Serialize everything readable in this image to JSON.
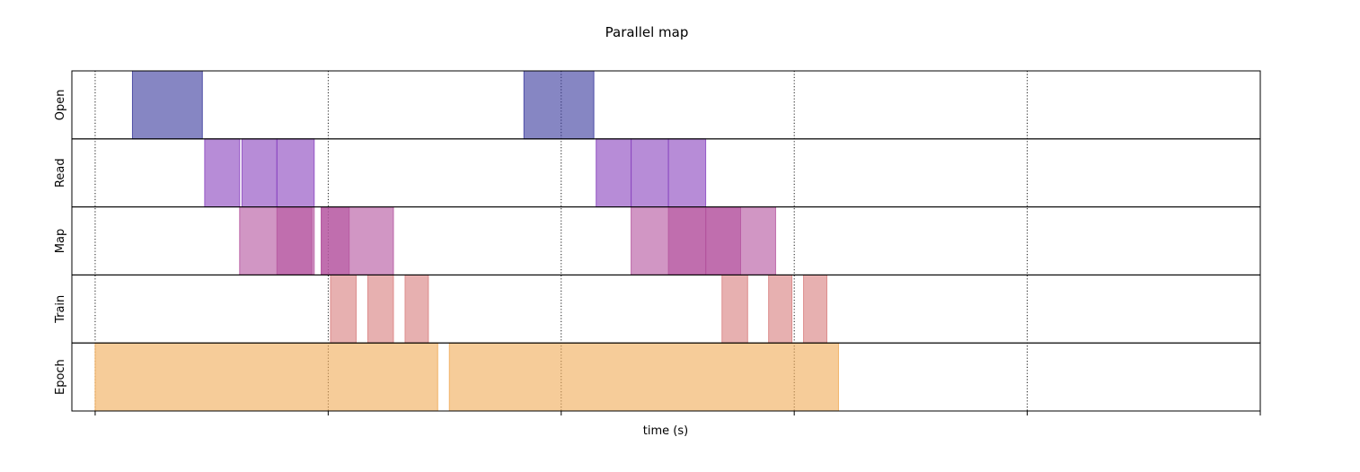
{
  "chart_data": {
    "type": "timeline",
    "title": "Parallel map",
    "xlabel": "time (s)",
    "xlim": [
      -0.1,
      5.0
    ],
    "grid_x": [
      0,
      1,
      2,
      3,
      4,
      5
    ],
    "lanes": [
      {
        "name": "Open",
        "color": "#3c3c9e",
        "segments": [
          {
            "start": 0.16,
            "end": 0.46
          },
          {
            "start": 1.84,
            "end": 2.14
          }
        ]
      },
      {
        "name": "Read",
        "color": "#8a46bf",
        "segments": [
          {
            "start": 0.47,
            "end": 0.62
          },
          {
            "start": 0.63,
            "end": 0.78
          },
          {
            "start": 0.78,
            "end": 0.94
          },
          {
            "start": 2.15,
            "end": 2.3
          },
          {
            "start": 2.3,
            "end": 2.46
          },
          {
            "start": 2.46,
            "end": 2.62
          }
        ]
      },
      {
        "name": "Map",
        "color": "#b5569f",
        "segments": [
          {
            "start": 0.62,
            "end": 0.94
          },
          {
            "start": 0.78,
            "end": 0.93
          },
          {
            "start": 0.97,
            "end": 1.28
          },
          {
            "start": 0.97,
            "end": 1.09
          },
          {
            "start": 2.3,
            "end": 2.62
          },
          {
            "start": 2.46,
            "end": 2.62
          },
          {
            "start": 2.62,
            "end": 2.77
          },
          {
            "start": 2.62,
            "end": 2.92
          }
        ]
      },
      {
        "name": "Train",
        "color": "#d98080",
        "segments": [
          {
            "start": 1.01,
            "end": 1.12
          },
          {
            "start": 1.17,
            "end": 1.28
          },
          {
            "start": 1.33,
            "end": 1.43
          },
          {
            "start": 2.69,
            "end": 2.8
          },
          {
            "start": 2.89,
            "end": 2.99
          },
          {
            "start": 3.04,
            "end": 3.14
          }
        ]
      },
      {
        "name": "Epoch",
        "color": "#f0ad5a",
        "segments": [
          {
            "start": 0.0,
            "end": 1.47
          },
          {
            "start": 1.52,
            "end": 3.19
          }
        ]
      }
    ]
  }
}
